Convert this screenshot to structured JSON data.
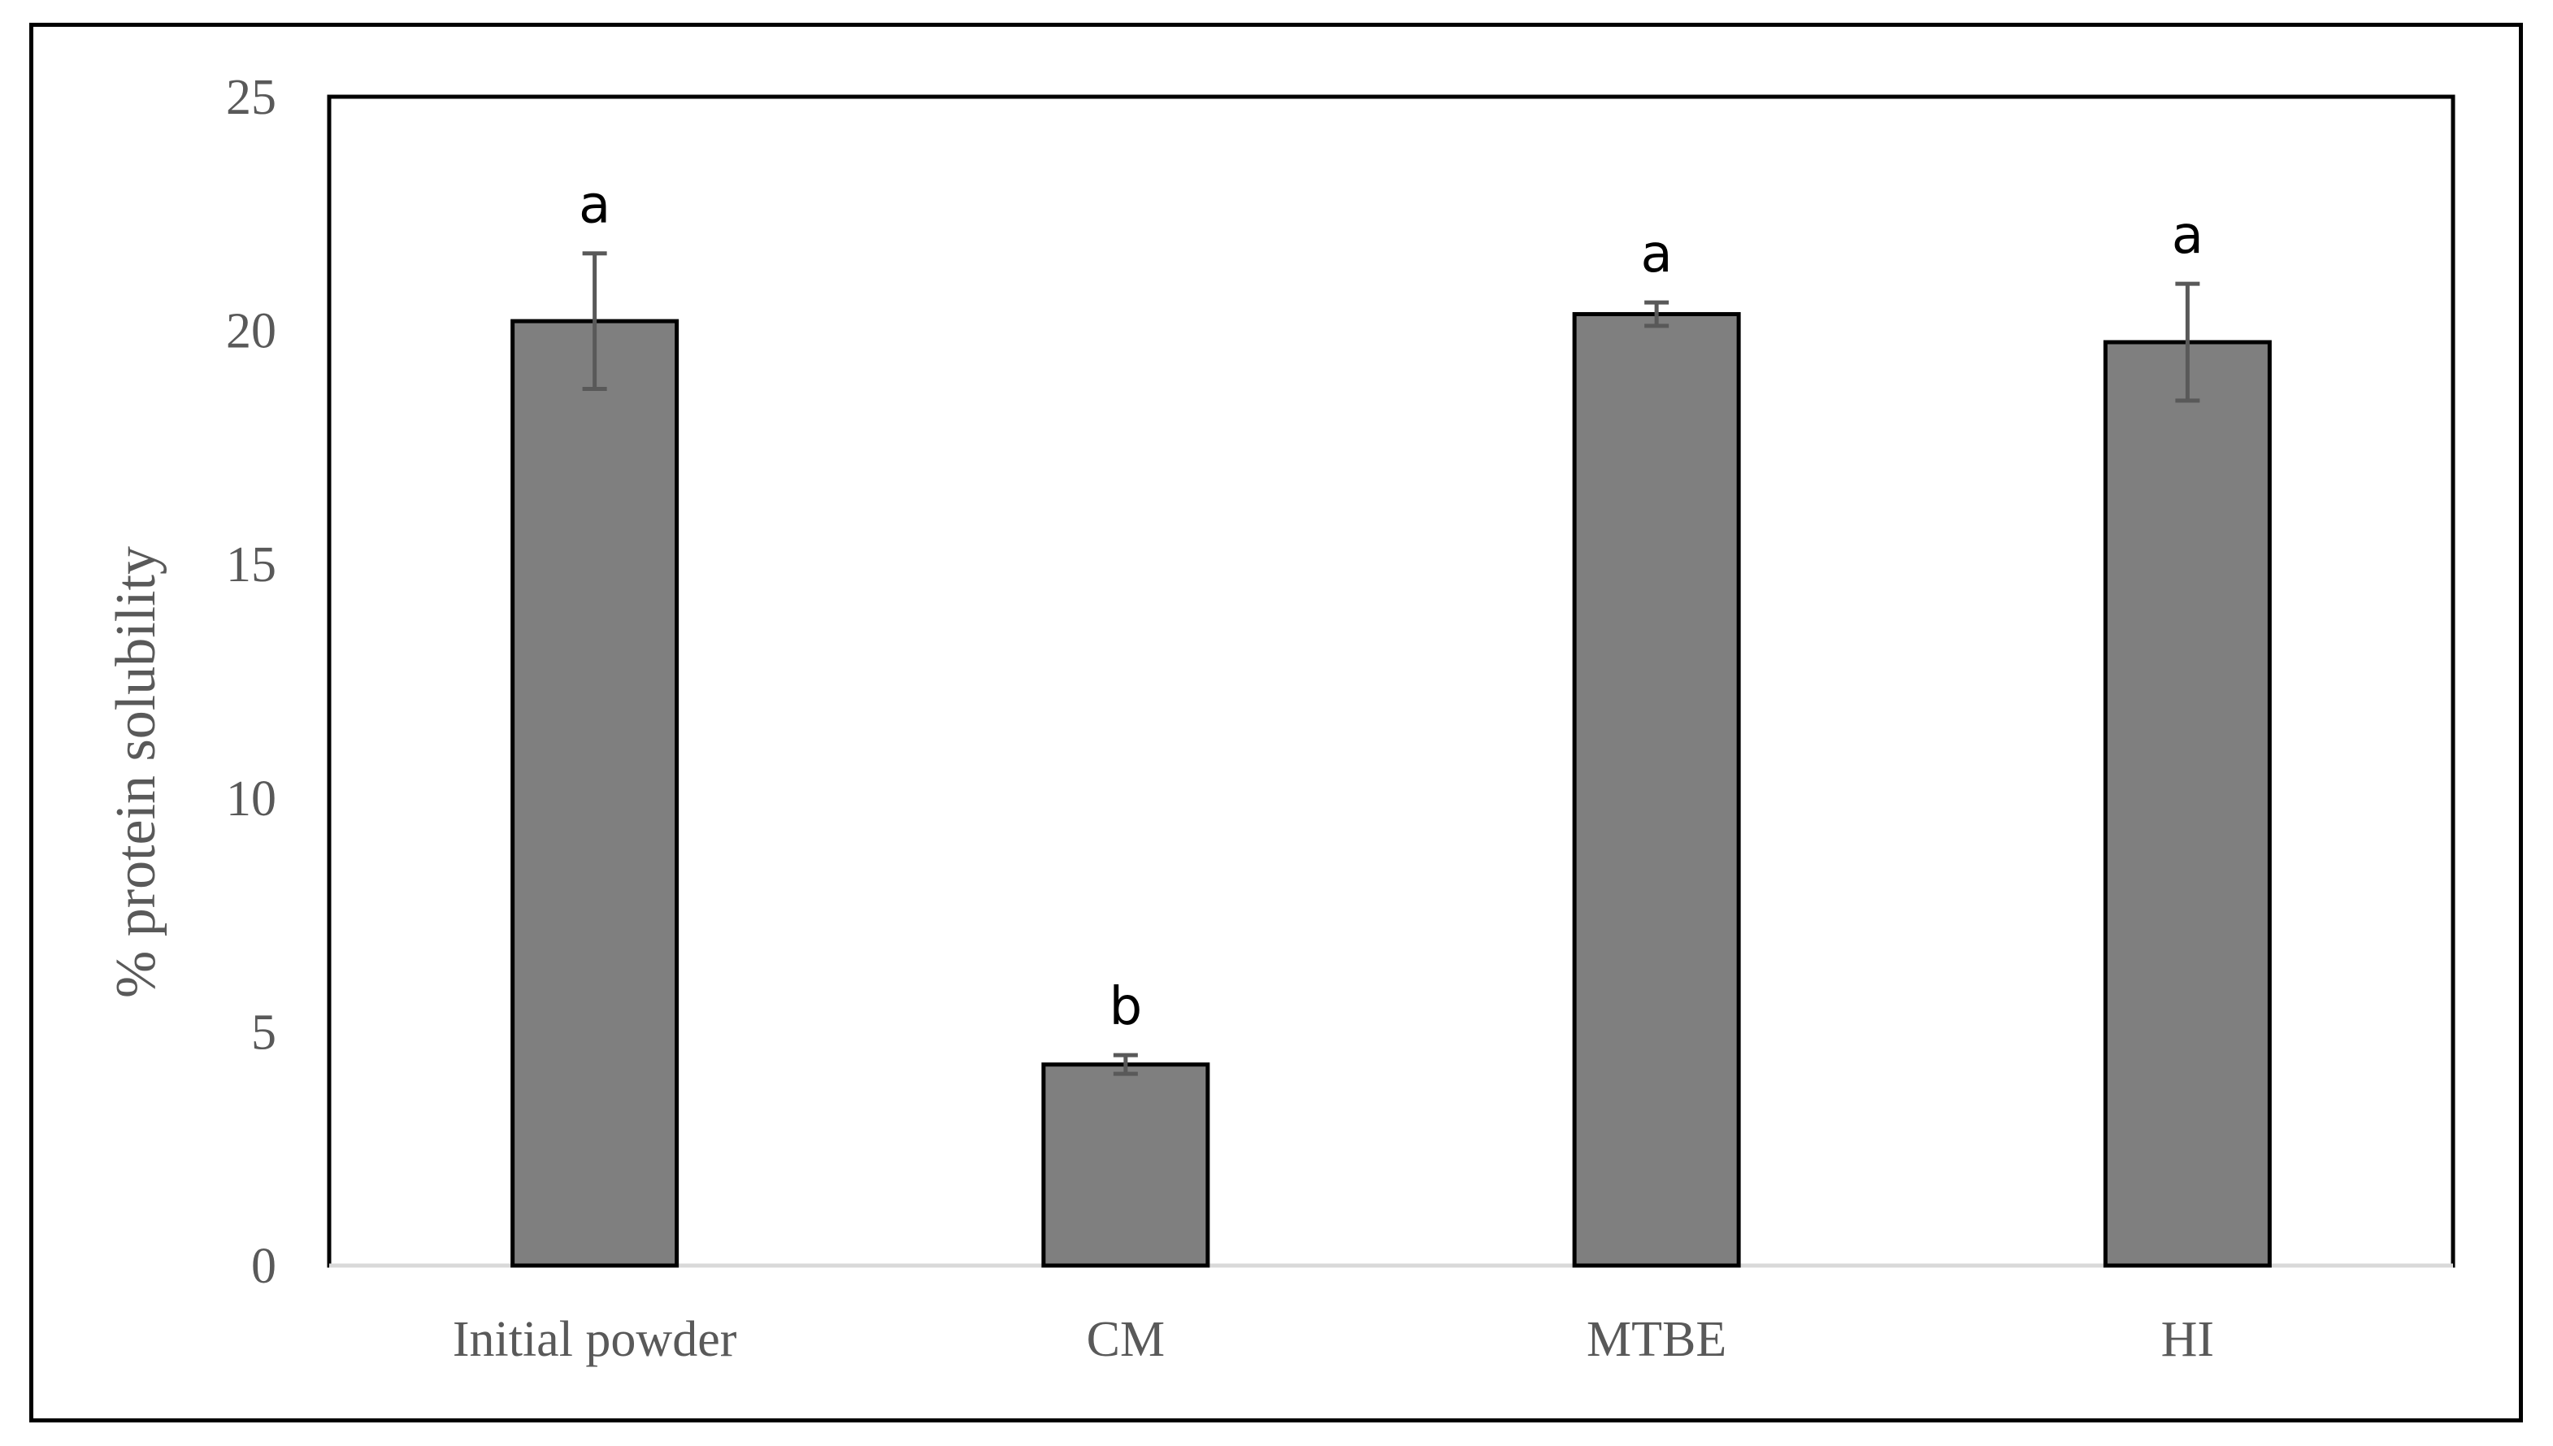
{
  "chart_data": {
    "type": "bar",
    "categories": [
      "Initial powder",
      "CM",
      "MTBE",
      "HI"
    ],
    "values": [
      20.2,
      4.3,
      20.35,
      19.75
    ],
    "error_bars": [
      1.45,
      0.2,
      0.25,
      1.25
    ],
    "significance_labels": [
      "a",
      "b",
      "a",
      "a"
    ],
    "title": "",
    "xlabel": "",
    "ylabel": "% protein solubility",
    "ylim": [
      0,
      25
    ],
    "yticks": [
      0,
      5,
      10,
      15,
      20,
      25
    ],
    "grid": false,
    "legend": "none",
    "bar_color": "#7f7f7f",
    "bar_edge_color": "#000000",
    "errorbar_color": "#595959"
  }
}
